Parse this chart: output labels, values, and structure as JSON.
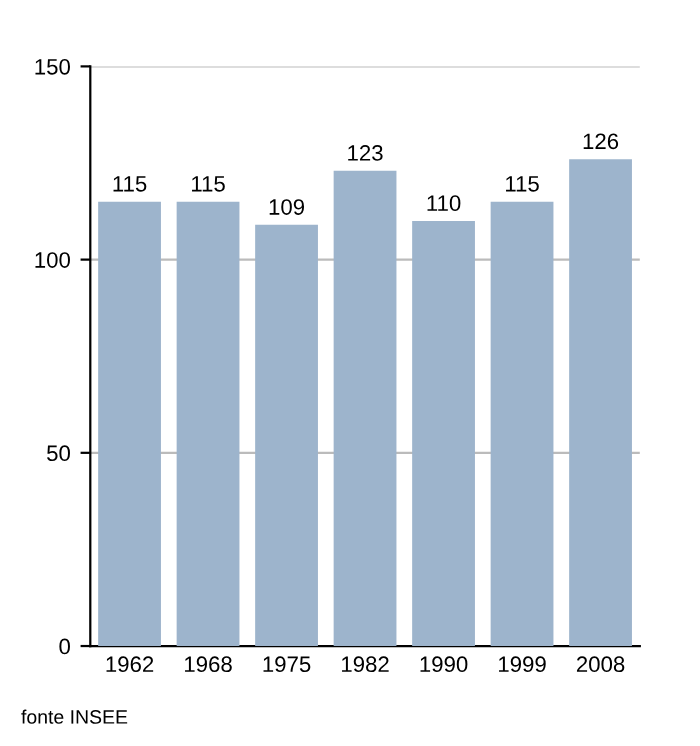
{
  "chart_data": {
    "type": "bar",
    "categories": [
      "1962",
      "1968",
      "1975",
      "1982",
      "1990",
      "1999",
      "2008"
    ],
    "values": [
      115,
      115,
      109,
      123,
      110,
      115,
      126
    ],
    "color": "#9db4cc",
    "ylim": [
      0,
      150
    ],
    "yticks": [
      0,
      50,
      100,
      150
    ],
    "grid": "y",
    "data_labels": true,
    "annotations": [
      "fonte INSEE"
    ]
  }
}
